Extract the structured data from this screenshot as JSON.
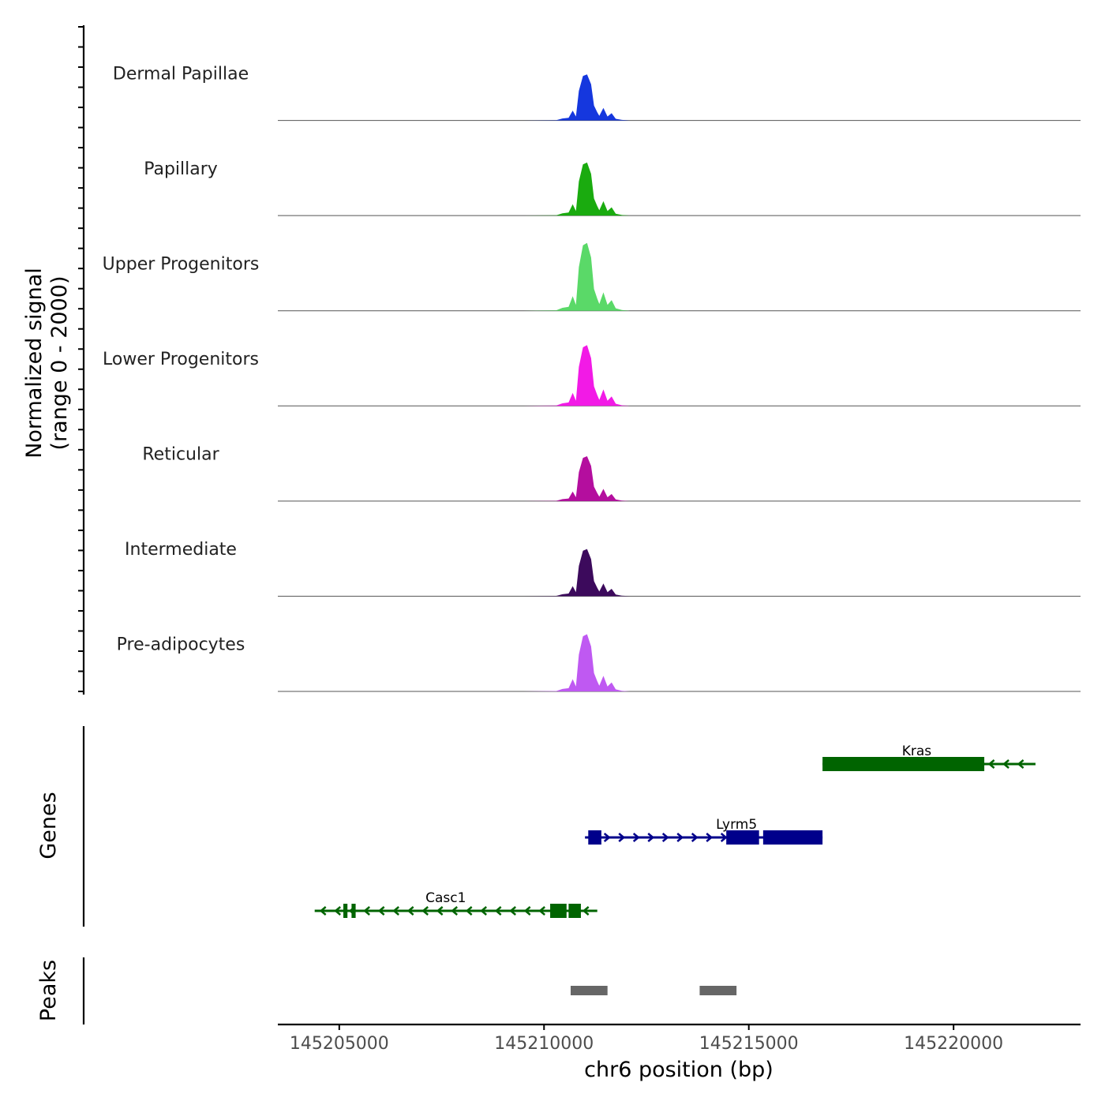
{
  "chart_data": {
    "type": "area",
    "title": "",
    "ylabel_line1": "Normalized signal",
    "ylabel_line2": "(range 0 - 2000)",
    "xlabel": "chr6 position (bp)",
    "x_range": [
      145203500,
      145223100
    ],
    "y_range": [
      0,
      2000
    ],
    "x_ticks": [
      145205000,
      145210000,
      145215000,
      145220000
    ],
    "x_tick_labels": [
      "145205000",
      "145210000",
      "145215000",
      "145220000"
    ],
    "peak_profile": [
      [
        145209000,
        0
      ],
      [
        145209500,
        0
      ],
      [
        145210300,
        10
      ],
      [
        145210450,
        60
      ],
      [
        145210600,
        80
      ],
      [
        145210700,
        300
      ],
      [
        145210780,
        120
      ],
      [
        145210850,
        900
      ],
      [
        145210950,
        1350
      ],
      [
        145211050,
        1400
      ],
      [
        145211150,
        1100
      ],
      [
        145211220,
        450
      ],
      [
        145211300,
        250
      ],
      [
        145211350,
        140
      ],
      [
        145211450,
        380
      ],
      [
        145211550,
        120
      ],
      [
        145211650,
        220
      ],
      [
        145211750,
        50
      ],
      [
        145211900,
        15
      ],
      [
        145212100,
        0
      ],
      [
        145213000,
        0
      ]
    ],
    "series": [
      {
        "name": "Dermal Papillae",
        "color": "#1537de",
        "scale": 0.78
      },
      {
        "name": "Papillary",
        "color": "#1aab0f",
        "scale": 0.9
      },
      {
        "name": "Upper Progenitors",
        "color": "#5ad968",
        "scale": 1.15
      },
      {
        "name": "Lower Progenitors",
        "color": "#f21ae6",
        "scale": 1.03
      },
      {
        "name": "Reticular",
        "color": "#b40e9e",
        "scale": 0.76
      },
      {
        "name": "Intermediate",
        "color": "#3c0a5c",
        "scale": 0.8
      },
      {
        "name": "Pre-adipocytes",
        "color": "#bf59f2",
        "scale": 0.97
      }
    ],
    "genes_track_label": "Genes",
    "genes": [
      {
        "name": "Kras",
        "strand": "-",
        "color": "#006400",
        "row": 0,
        "start": 145216800,
        "end": 145222000,
        "exons": [
          [
            145216800,
            145220750
          ]
        ]
      },
      {
        "name": "Lyrm5",
        "strand": "+",
        "color": "#00008b",
        "row": 1,
        "start": 145211000,
        "end": 145216800,
        "exons": [
          [
            145211080,
            145211400
          ],
          [
            145214450,
            145215250
          ],
          [
            145215350,
            145216800
          ]
        ]
      },
      {
        "name": "Casc1",
        "strand": "-",
        "color": "#006400",
        "row": 2,
        "start": 145204400,
        "end": 145211300,
        "exons": [
          [
            145205100,
            145205200
          ],
          [
            145205300,
            145205400
          ],
          [
            145210150,
            145210550
          ],
          [
            145210600,
            145210900
          ]
        ]
      }
    ],
    "peaks_track_label": "Peaks",
    "peaks": [
      {
        "start": 145210650,
        "end": 145211550,
        "color": "#666666"
      },
      {
        "start": 145213800,
        "end": 145214700,
        "color": "#666666"
      }
    ]
  }
}
